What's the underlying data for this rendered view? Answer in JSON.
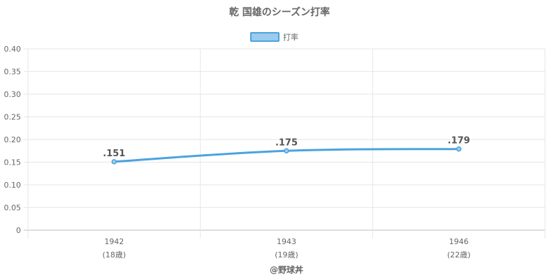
{
  "chart_data": {
    "type": "line",
    "title": "乾 国雄のシーズン打率",
    "legend": {
      "label": "打率",
      "position": "top",
      "color": "#4aa3df",
      "fill": "#9ccbee"
    },
    "categories": [
      "1942",
      "1943",
      "1946"
    ],
    "category_sublabels": [
      "(18歳)",
      "(19歳)",
      "(22歳)"
    ],
    "series": [
      {
        "name": "打率",
        "values": [
          0.151,
          0.175,
          0.179
        ],
        "data_labels": [
          ".151",
          ".175",
          ".179"
        ],
        "color": "#4aa3df"
      }
    ],
    "ylim": [
      0,
      0.4
    ],
    "yticks": [
      "0",
      "0.05",
      "0.10",
      "0.15",
      "0.20",
      "0.25",
      "0.30",
      "0.35",
      "0.40"
    ],
    "ytick_values": [
      0,
      0.05,
      0.1,
      0.15,
      0.2,
      0.25,
      0.3,
      0.35,
      0.4
    ],
    "grid": true,
    "footer": "@野球丼"
  }
}
